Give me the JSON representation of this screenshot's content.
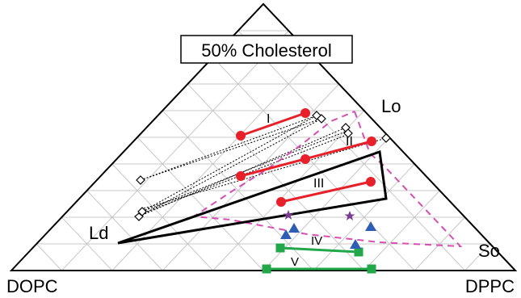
{
  "title": "50% Cholesterol",
  "corner_labels": {
    "left": "DOPC",
    "right": "DPPC"
  },
  "region_labels": {
    "ld": "Ld",
    "lo": "Lo",
    "so": "So"
  },
  "tieline_labels": {
    "i": "I",
    "ii": "II",
    "iii": "III",
    "iv": "IV",
    "v": "V"
  },
  "colors": {
    "tieline_red": "#e8202a",
    "tieline_green": "#22a84a",
    "boundary_pink": "#d64fb0",
    "triangle_marker": "#2e5db4",
    "star_marker": "#7a3a90",
    "grid": "#c8c8c8",
    "outline": "#000000"
  }
}
